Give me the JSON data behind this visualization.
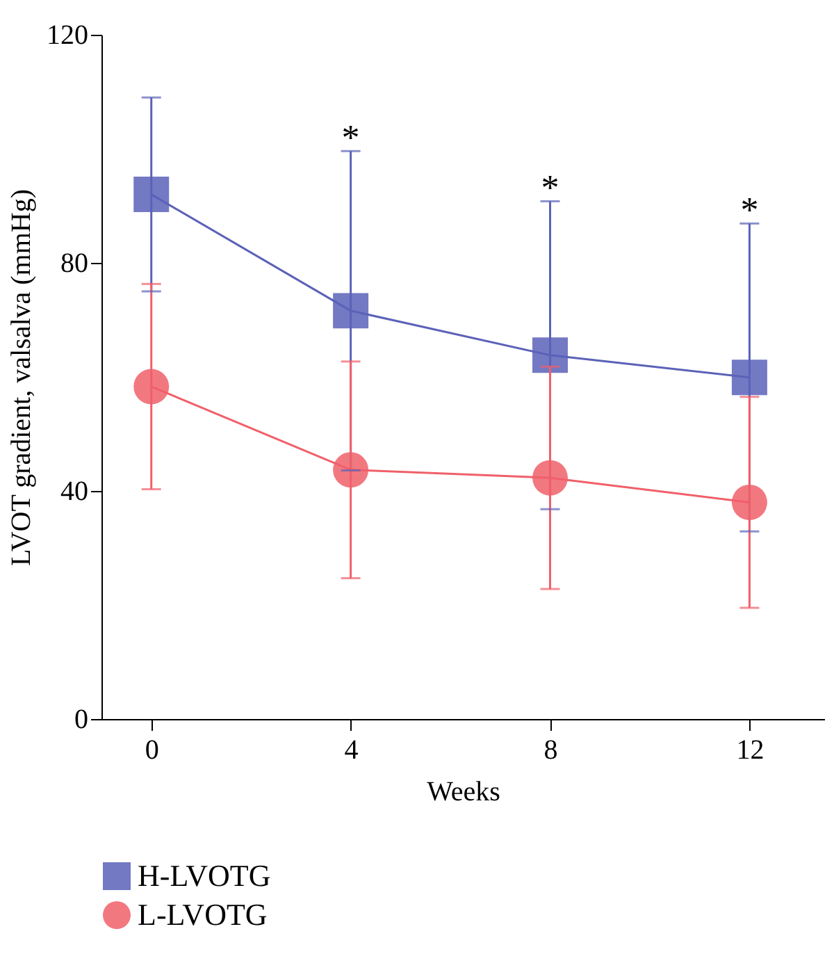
{
  "chart_data": {
    "type": "line",
    "xlabel": "Weeks",
    "ylabel": "LVOT gradient, valsalva (mmHg)",
    "x": [
      0,
      4,
      8,
      12
    ],
    "xlim": [
      -1,
      13.5
    ],
    "xticks": [
      0,
      4,
      8,
      12
    ],
    "ylim": [
      0,
      120
    ],
    "yticks": [
      0,
      40,
      80,
      120
    ],
    "grid": false,
    "legend": "bottom left",
    "line_style": "solid",
    "series": [
      {
        "name": "H-LVOTG",
        "color": "#5b62b8",
        "marker": "square",
        "values": [
          92,
          71.6,
          63.8,
          59.9
        ],
        "errors": [
          17,
          28,
          27,
          27
        ]
      },
      {
        "name": "L-LVOTG",
        "color": "#f0606a",
        "marker": "circle",
        "values": [
          58.3,
          43.7,
          42.3,
          38
        ],
        "errors": [
          18,
          19,
          19.5,
          18.5
        ]
      }
    ],
    "annotations": [
      {
        "text": "*",
        "x": 4,
        "y": 99.6
      },
      {
        "text": "*",
        "x": 8,
        "y": 90.8
      },
      {
        "text": "*",
        "x": 12,
        "y": 86.9
      }
    ]
  }
}
